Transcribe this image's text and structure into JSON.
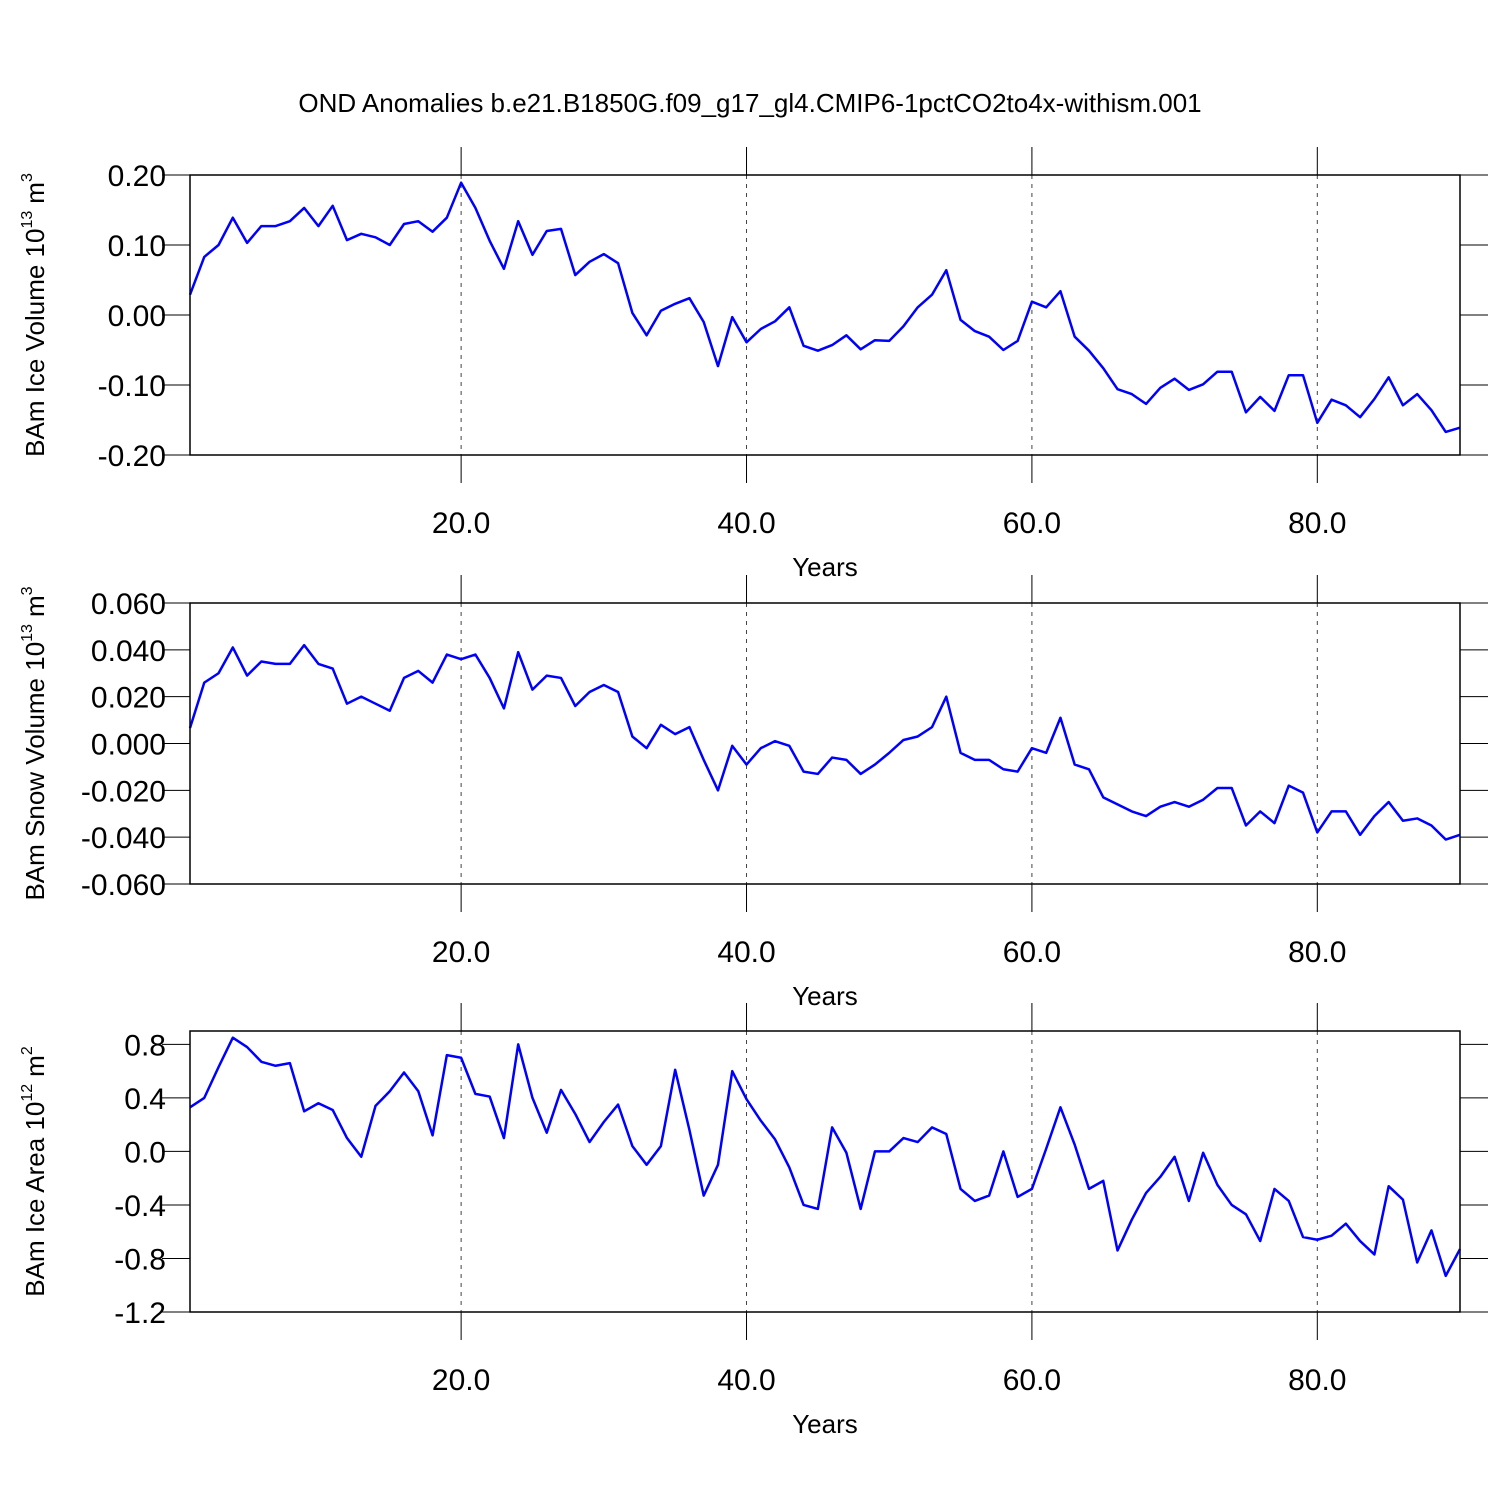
{
  "title": "OND Anomalies b.e21.B1850G.f09_g17_gl4.CMIP6-1pctCO2to4x-withism.001",
  "chart_data": [
    {
      "type": "line",
      "xlabel": "Years",
      "ylabel": {
        "text": "BAm Ice Volume 10",
        "exponent": "13",
        "unit": "m",
        "unit_exponent": "3"
      },
      "xlim": [
        1,
        90
      ],
      "xticks": [
        {
          "value": 20,
          "label": "20.0"
        },
        {
          "value": 40,
          "label": "40.0"
        },
        {
          "value": 60,
          "label": "60.0"
        },
        {
          "value": 80,
          "label": "80.0"
        }
      ],
      "ylim": [
        -0.2,
        0.2
      ],
      "yticks": [
        {
          "value": 0.2,
          "label": "0.20"
        },
        {
          "value": 0.1,
          "label": "0.10"
        },
        {
          "value": 0,
          "label": "0.00"
        },
        {
          "value": -0.1,
          "label": "-0.10"
        },
        {
          "value": -0.2,
          "label": "-0.20"
        }
      ],
      "xgrid": true,
      "x": [
        1,
        2,
        3,
        4,
        5,
        6,
        7,
        8,
        9,
        10,
        11,
        12,
        13,
        14,
        15,
        16,
        17,
        18,
        19,
        20,
        21,
        22,
        23,
        24,
        25,
        26,
        27,
        28,
        29,
        30,
        31,
        32,
        33,
        34,
        35,
        36,
        37,
        38,
        39,
        40,
        41,
        42,
        43,
        44,
        45,
        46,
        47,
        48,
        49,
        50,
        51,
        52,
        53,
        54,
        55,
        56,
        57,
        58,
        59,
        60,
        61,
        62,
        63,
        64,
        65,
        66,
        67,
        68,
        69,
        70,
        71,
        72,
        73,
        74,
        75,
        76,
        77,
        78,
        79,
        80,
        81,
        82,
        83,
        84,
        85,
        86,
        87,
        88,
        89,
        90
      ],
      "series": [
        {
          "color": "#0000ff",
          "values": [
            0.029,
            0.083,
            0.1,
            0.139,
            0.103,
            0.127,
            0.127,
            0.134,
            0.153,
            0.127,
            0.156,
            0.107,
            0.116,
            0.111,
            0.1,
            0.13,
            0.134,
            0.119,
            0.139,
            0.189,
            0.153,
            0.106,
            0.066,
            0.134,
            0.086,
            0.12,
            0.123,
            0.057,
            0.076,
            0.087,
            0.074,
            0.003,
            -0.029,
            0.006,
            0.016,
            0.024,
            -0.01,
            -0.073,
            -0.003,
            -0.039,
            -0.02,
            -0.009,
            0.011,
            -0.044,
            -0.051,
            -0.043,
            -0.029,
            -0.049,
            -0.036,
            -0.037,
            -0.016,
            0.011,
            0.029,
            0.064,
            -0.007,
            -0.023,
            -0.031,
            -0.05,
            -0.037,
            0.019,
            0.011,
            0.034,
            -0.031,
            -0.051,
            -0.076,
            -0.106,
            -0.113,
            -0.127,
            -0.104,
            -0.091,
            -0.107,
            -0.099,
            -0.081,
            -0.081,
            -0.139,
            -0.117,
            -0.137,
            -0.086,
            -0.086,
            -0.154,
            -0.121,
            -0.129,
            -0.146,
            -0.12,
            -0.089,
            -0.129,
            -0.113,
            -0.136,
            -0.167,
            -0.161
          ]
        }
      ]
    },
    {
      "type": "line",
      "xlabel": "Years",
      "ylabel": {
        "text": "BAm Snow Volume 10",
        "exponent": "13",
        "unit": "m",
        "unit_exponent": "3"
      },
      "xlim": [
        1,
        90
      ],
      "xticks": [
        {
          "value": 20,
          "label": "20.0"
        },
        {
          "value": 40,
          "label": "40.0"
        },
        {
          "value": 60,
          "label": "60.0"
        },
        {
          "value": 80,
          "label": "80.0"
        }
      ],
      "ylim": [
        -0.06,
        0.06
      ],
      "yticks": [
        {
          "value": 0.06,
          "label": "0.060"
        },
        {
          "value": 0.04,
          "label": "0.040"
        },
        {
          "value": 0.02,
          "label": "0.020"
        },
        {
          "value": 0,
          "label": "0.000"
        },
        {
          "value": -0.02,
          "label": "-0.020"
        },
        {
          "value": -0.04,
          "label": "-0.040"
        },
        {
          "value": -0.06,
          "label": "-0.060"
        }
      ],
      "xgrid": true,
      "x": [
        1,
        2,
        3,
        4,
        5,
        6,
        7,
        8,
        9,
        10,
        11,
        12,
        13,
        14,
        15,
        16,
        17,
        18,
        19,
        20,
        21,
        22,
        23,
        24,
        25,
        26,
        27,
        28,
        29,
        30,
        31,
        32,
        33,
        34,
        35,
        36,
        37,
        38,
        39,
        40,
        41,
        42,
        43,
        44,
        45,
        46,
        47,
        48,
        49,
        50,
        51,
        52,
        53,
        54,
        55,
        56,
        57,
        58,
        59,
        60,
        61,
        62,
        63,
        64,
        65,
        66,
        67,
        68,
        69,
        70,
        71,
        72,
        73,
        74,
        75,
        76,
        77,
        78,
        79,
        80,
        81,
        82,
        83,
        84,
        85,
        86,
        87,
        88,
        89,
        90
      ],
      "series": [
        {
          "color": "#0000ff",
          "values": [
            0.0066,
            0.026,
            0.03,
            0.041,
            0.029,
            0.035,
            0.034,
            0.034,
            0.042,
            0.034,
            0.032,
            0.017,
            0.02,
            0.017,
            0.014,
            0.028,
            0.031,
            0.026,
            0.038,
            0.036,
            0.038,
            0.028,
            0.015,
            0.039,
            0.023,
            0.029,
            0.028,
            0.016,
            0.022,
            0.025,
            0.022,
            0.003,
            -0.002,
            0.008,
            0.004,
            0.007,
            -0.007,
            -0.02,
            -0.001,
            -0.009,
            -0.002,
            0.001,
            -0.001,
            -0.012,
            -0.013,
            -0.006,
            -0.007,
            -0.013,
            -0.009,
            -0.004,
            0.0015,
            0.003,
            0.007,
            0.02,
            -0.004,
            -0.007,
            -0.007,
            -0.011,
            -0.012,
            -0.002,
            -0.004,
            0.011,
            -0.009,
            -0.011,
            -0.023,
            -0.026,
            -0.029,
            -0.031,
            -0.027,
            -0.025,
            -0.027,
            -0.024,
            -0.019,
            -0.019,
            -0.035,
            -0.029,
            -0.034,
            -0.018,
            -0.021,
            -0.038,
            -0.029,
            -0.029,
            -0.039,
            -0.031,
            -0.025,
            -0.033,
            -0.032,
            -0.035,
            -0.041,
            -0.039
          ]
        }
      ]
    },
    {
      "type": "line",
      "xlabel": "Years",
      "ylabel": {
        "text": "BAm Ice Area 10",
        "exponent": "12",
        "unit": "m",
        "unit_exponent": "2"
      },
      "xlim": [
        1,
        90
      ],
      "xticks": [
        {
          "value": 20,
          "label": "20.0"
        },
        {
          "value": 40,
          "label": "40.0"
        },
        {
          "value": 60,
          "label": "60.0"
        },
        {
          "value": 80,
          "label": "80.0"
        }
      ],
      "ylim": [
        -1.2,
        0.9
      ],
      "yticks": [
        0.8,
        0.4,
        {
          "value": 0,
          "label": "0.0"
        },
        -0.4,
        -0.8,
        -1.2
      ],
      "xgrid": true,
      "x": [
        1,
        2,
        3,
        4,
        5,
        6,
        7,
        8,
        9,
        10,
        11,
        12,
        13,
        14,
        15,
        16,
        17,
        18,
        19,
        20,
        21,
        22,
        23,
        24,
        25,
        26,
        27,
        28,
        29,
        30,
        31,
        32,
        33,
        34,
        35,
        36,
        37,
        38,
        39,
        40,
        41,
        42,
        43,
        44,
        45,
        46,
        47,
        48,
        49,
        50,
        51,
        52,
        53,
        54,
        55,
        56,
        57,
        58,
        59,
        60,
        61,
        62,
        63,
        64,
        65,
        66,
        67,
        68,
        69,
        70,
        71,
        72,
        73,
        74,
        75,
        76,
        77,
        78,
        79,
        80,
        81,
        82,
        83,
        84,
        85,
        86,
        87,
        88,
        89,
        90
      ],
      "series": [
        {
          "color": "#0000ff",
          "values": [
            0.33,
            0.4,
            0.63,
            0.85,
            0.78,
            0.67,
            0.64,
            0.66,
            0.3,
            0.36,
            0.31,
            0.1,
            -0.04,
            0.34,
            0.45,
            0.59,
            0.45,
            0.12,
            0.72,
            0.7,
            0.43,
            0.41,
            0.1,
            0.8,
            0.4,
            0.14,
            0.46,
            0.28,
            0.07,
            0.22,
            0.35,
            0.04,
            -0.1,
            0.04,
            0.61,
            0.16,
            -0.33,
            -0.1,
            0.6,
            0.39,
            0.23,
            0.09,
            -0.12,
            -0.4,
            -0.43,
            0.18,
            -0.01,
            -0.43,
            0,
            0,
            0.1,
            0.07,
            0.18,
            0.13,
            -0.28,
            -0.37,
            -0.33,
            0,
            -0.34,
            -0.28,
            0.02,
            0.33,
            0.05,
            -0.28,
            -0.22,
            -0.74,
            -0.51,
            -0.31,
            -0.19,
            -0.04,
            -0.37,
            -0.01,
            -0.25,
            -0.4,
            -0.47,
            -0.67,
            -0.28,
            -0.37,
            -0.64,
            -0.66,
            -0.63,
            -0.54,
            -0.67,
            -0.77,
            -0.26,
            -0.36,
            -0.83,
            -0.59,
            -0.93,
            -0.73
          ]
        }
      ]
    }
  ]
}
